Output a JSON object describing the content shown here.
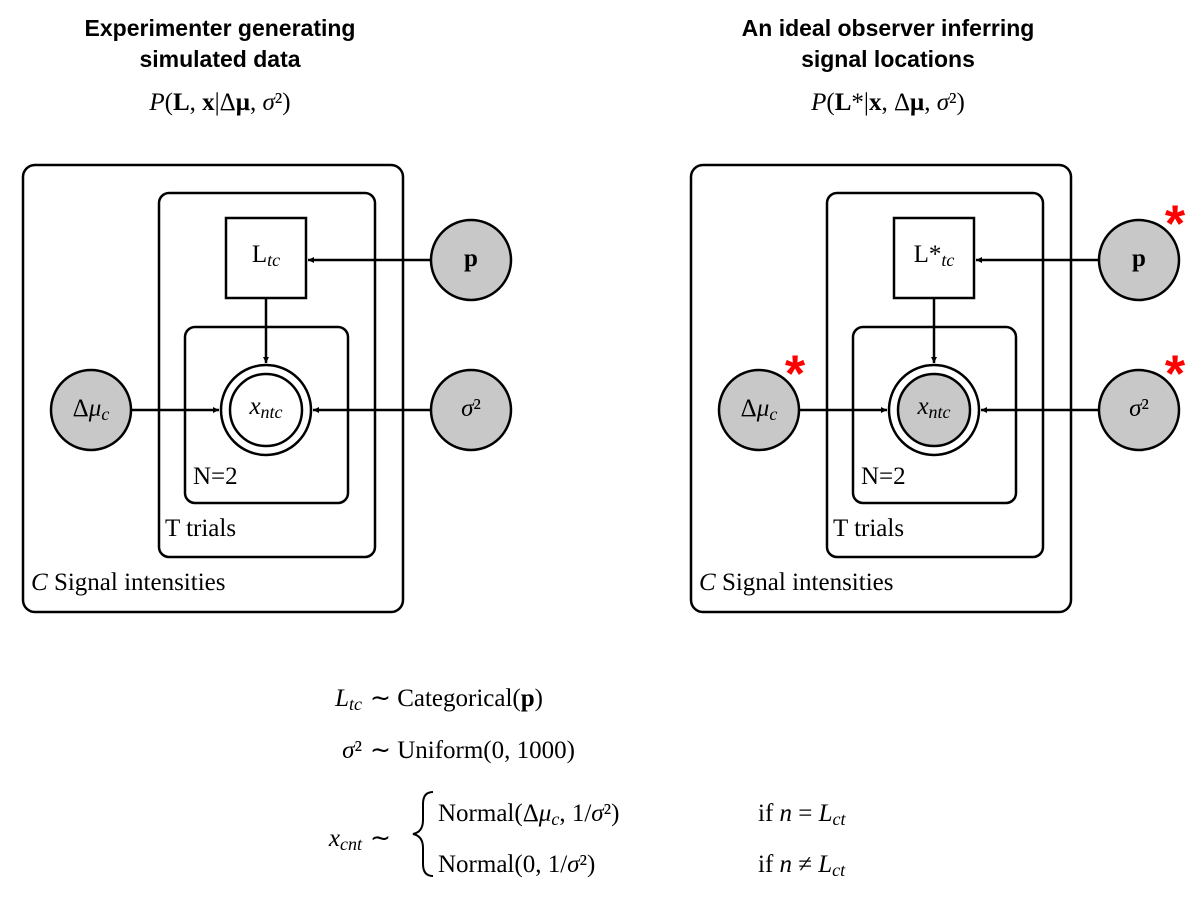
{
  "panels": [
    {
      "title": [
        "Experimenter generating",
        "simulated data"
      ],
      "formula": [
        {
          "i": "P"
        },
        "(",
        {
          "b": "L"
        },
        ", ",
        {
          "b": "x"
        },
        "|Δ",
        {
          "b": "μ"
        },
        ", ",
        {
          "i": "σ"
        },
        "²)"
      ],
      "nodes": {
        "L": [
          "L",
          {
            "sub": "tc"
          }
        ],
        "p": [
          {
            "b": "p"
          }
        ],
        "dmu": [
          "Δ",
          {
            "i": "μ"
          },
          {
            "sub": "c"
          }
        ],
        "x": [
          {
            "i": "x"
          },
          {
            "sub": "ntc"
          }
        ],
        "sigma": [
          {
            "i": "σ"
          },
          "²"
        ]
      },
      "plates": {
        "N": "N=2",
        "T": "T trials",
        "C": [
          {
            "i": "C"
          },
          " Signal intensities"
        ]
      }
    },
    {
      "title": [
        "An ideal observer inferring",
        "signal locations"
      ],
      "formula": [
        {
          "i": "P"
        },
        "(",
        {
          "b": "L"
        },
        "*|",
        {
          "b": "x"
        },
        ", Δ",
        {
          "b": "μ"
        },
        ", ",
        {
          "i": "σ"
        },
        "²)"
      ],
      "nodes": {
        "L": [
          "L*",
          {
            "sub": "tc"
          }
        ],
        "p": [
          {
            "b": "p"
          }
        ],
        "dmu": [
          "Δ",
          {
            "i": "μ"
          },
          {
            "sub": "c"
          }
        ],
        "x": [
          {
            "i": "x"
          },
          {
            "sub": "ntc"
          }
        ],
        "sigma": [
          {
            "i": "σ"
          },
          "²"
        ]
      },
      "plates": {
        "N": "N=2",
        "T": "T trials",
        "C": [
          {
            "i": "C"
          },
          " Signal intensities"
        ]
      },
      "inferred_marker": "*"
    }
  ],
  "equations": [
    {
      "lhs": [
        {
          "i": "L"
        },
        {
          "sub": "tc"
        }
      ],
      "rhs": [
        "∼ Categorical(",
        {
          "b": "p"
        },
        ")"
      ]
    },
    {
      "lhs": [
        {
          "i": "σ"
        },
        "²"
      ],
      "rhs": [
        "∼ Uniform(0, 1000)"
      ]
    },
    {
      "lhs": [
        {
          "i": "x"
        },
        {
          "sub": "cnt"
        }
      ],
      "rhs": [
        "∼"
      ],
      "cases": [
        {
          "expr": [
            "Normal(Δ",
            {
              "i": "μ"
            },
            {
              "sub": "c"
            },
            ", 1/",
            {
              "i": "σ"
            },
            "²)"
          ],
          "cond": [
            "if ",
            {
              "i": "n"
            },
            " = ",
            {
              "i": "L"
            },
            {
              "sub": "ct"
            }
          ]
        },
        {
          "expr": [
            "Normal(0, 1/",
            {
              "i": "σ"
            },
            "²)"
          ],
          "cond": [
            "if ",
            {
              "i": "n"
            },
            " ≠ ",
            {
              "i": "L"
            },
            {
              "sub": "ct"
            }
          ]
        }
      ]
    }
  ]
}
